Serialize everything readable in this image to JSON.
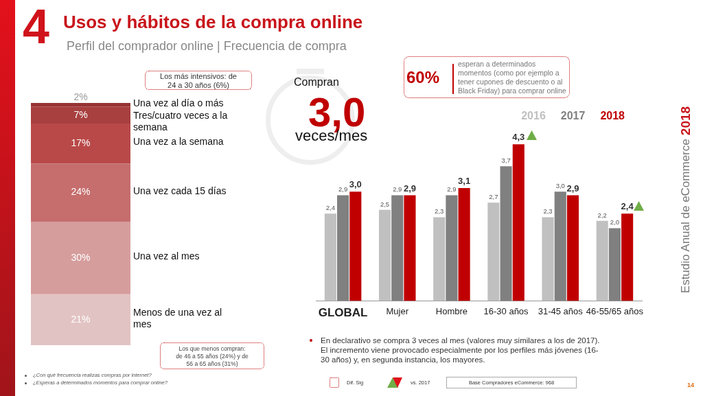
{
  "chart_data": [
    {
      "type": "bar",
      "title": "Usos y hábitos de la compra online",
      "subtitle": "Perfil del comprador online | Frecuencia de compra",
      "categories": [
        null
      ],
      "stacked": true,
      "series": [
        {
          "name": "Menos de una vez al mes",
          "color": "#e2c3c3",
          "values": [
            21
          ],
          "value_labels": [
            "21%"
          ]
        },
        {
          "name": "Una vez al mes",
          "color": "#d69d9d",
          "values": [
            30
          ],
          "value_labels": [
            "30%"
          ]
        },
        {
          "name": "Una vez cada 15 días",
          "color": "#c66d6d",
          "values": [
            24
          ],
          "value_labels": [
            "24%"
          ]
        },
        {
          "name": "Una vez a la semana",
          "color": "#b94949",
          "values": [
            16.5
          ],
          "value_labels": [
            "17%"
          ]
        },
        {
          "name": "Tres/cuatro veces a la semana",
          "color": "#a84040",
          "values": [
            7
          ],
          "value_labels": [
            "7%"
          ]
        },
        {
          "name": "Una vez al día o más",
          "color": "#973333",
          "values": [
            1.5
          ],
          "value_labels": [
            "2%"
          ]
        }
      ],
      "annotations": [
        "4",
        "Los más intensivos: de 24 a 30 años (6%)",
        "Los que menos compran: de 46 a 55 años (24%) y de 56 a 65 años (31%)",
        "¿Con qué frecuencia realizas compras por internet?",
        "¿Esperas a determinados momentos para comprar online?"
      ]
    },
    {
      "type": "bar",
      "categories": [
        "GLOBAL",
        "Mujer",
        "Hombre",
        "16-30 años",
        "31-45 años",
        "46-55/65 años"
      ],
      "legend": "top right",
      "series": [
        {
          "name": "2016",
          "color": "#c0c0c0",
          "values": [
            2.4,
            2.5,
            2.3,
            2.7,
            2.3,
            2.2
          ],
          "value_labels": [
            "2,4",
            "2,5",
            "2,3",
            "2,7",
            "2,3",
            "2,2"
          ]
        },
        {
          "name": "2017",
          "color": "#808080",
          "values": [
            2.9,
            2.9,
            2.9,
            3.7,
            3.0,
            2.0
          ],
          "value_labels": [
            "2,9",
            "2,9",
            "2,9",
            "3,7",
            "3,0",
            "2,0"
          ]
        },
        {
          "name": "2018",
          "color": "#c00000",
          "values": [
            3.0,
            2.9,
            3.1,
            4.3,
            2.9,
            2.4
          ],
          "value_labels": [
            "3,0",
            "2,9",
            "3,1",
            "4,3",
            "2,9",
            "2,4"
          ]
        }
      ],
      "annotations": [
        "Compran",
        "3,0",
        "veces/mes",
        "60%",
        "esperan a determinados momentos (como por ejemplo a tener cupones de descuento o al Black Friday) para comprar online",
        "Estudio Anual de eCommerce",
        "2018",
        "En declarativo se compra 3 veces al mes (valores muy similares a los de 2017). El incremento viene provocado especialmente por los perfiles más jóvenes (16-30 años) y, en segunda instancia, los mayores.",
        "Dif. Sig",
        "vs. 2017",
        "Base Compradores eCommerce: 968",
        "14"
      ]
    }
  ]
}
